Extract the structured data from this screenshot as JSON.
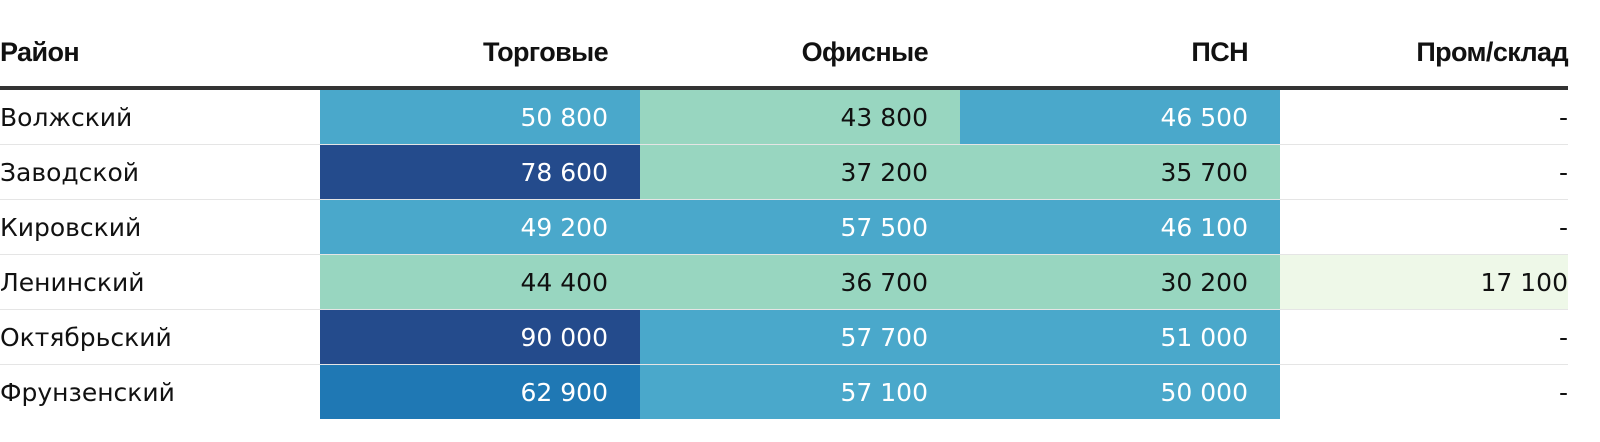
{
  "chart_data": {
    "type": "table",
    "columns": [
      "Район",
      "Торговые",
      "Офисные",
      "ПСН",
      "Пром/склад"
    ],
    "rows": [
      {
        "district": "Волжский",
        "values": [
          "50 800",
          "43 800",
          "46 500",
          "-"
        ]
      },
      {
        "district": "Заводской",
        "values": [
          "78 600",
          "37 200",
          "35 700",
          "-"
        ]
      },
      {
        "district": "Кировский",
        "values": [
          "49 200",
          "57 500",
          "46 100",
          "-"
        ]
      },
      {
        "district": "Ленинский",
        "values": [
          "44 400",
          "36 700",
          "30 200",
          "17 100"
        ]
      },
      {
        "district": "Октябрьский",
        "values": [
          "90 000",
          "57 700",
          "51 000",
          "-"
        ]
      },
      {
        "district": "Фрунзенский",
        "values": [
          "62 900",
          "57 100",
          "50 000",
          "-"
        ]
      }
    ],
    "color_scale": {
      "bins": [
        {
          "min": 0,
          "max": 30000,
          "bg": "#eef8e8",
          "fg": "#111111"
        },
        {
          "min": 30000,
          "max": 46000,
          "bg": "#98d6c0",
          "fg": "#111111"
        },
        {
          "min": 46000,
          "max": 60000,
          "bg": "#4aa8cb",
          "fg": "#ffffff"
        },
        {
          "min": 60000,
          "max": 70000,
          "bg": "#1f78b4",
          "fg": "#ffffff"
        },
        {
          "min": 70000,
          "max": 999999,
          "bg": "#244b8c",
          "fg": "#ffffff"
        }
      ],
      "empty_bg": "#ffffff",
      "empty_fg": "#111111"
    }
  }
}
